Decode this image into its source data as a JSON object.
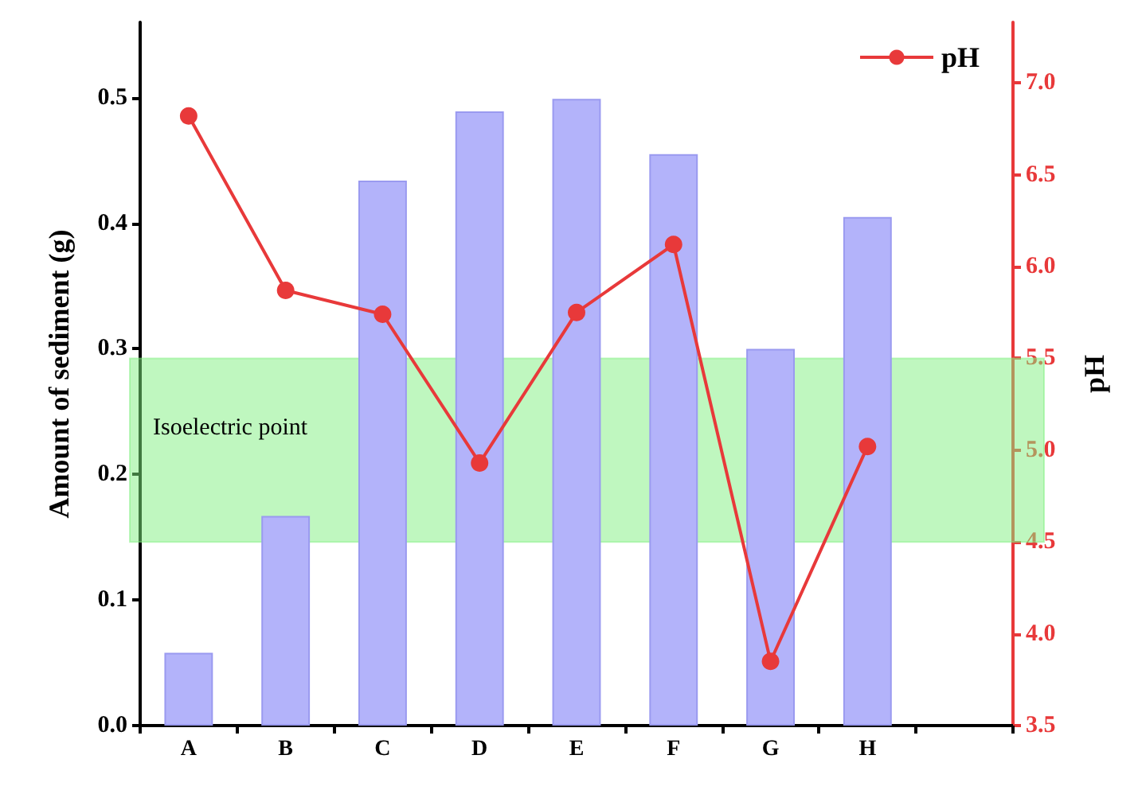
{
  "chart_data": {
    "type": "bar",
    "categories": [
      "A",
      "B",
      "C",
      "D",
      "E",
      "F",
      "G",
      "H"
    ],
    "series": [
      {
        "color": "#b3b3fa",
        "values": [
          0.058,
          0.167,
          0.434,
          0.489,
          0.499,
          0.455,
          0.3,
          0.405
        ]
      },
      {
        "name": "pH",
        "type": "line",
        "axis": "y2",
        "color": "#e8393a",
        "values": [
          6.82,
          5.87,
          5.74,
          4.93,
          5.75,
          6.12,
          3.85,
          5.02
        ]
      }
    ],
    "ylabel": "Amount of sediment (g)",
    "y2label": "pH",
    "ylim": [
      0,
      0.56
    ],
    "yticks": [
      {
        "value": 0,
        "label": "0.0"
      },
      0.1,
      0.2,
      0.3,
      0.4,
      0.5
    ],
    "y2lim": [
      3.5,
      7.33
    ],
    "y2ticks": [
      3.5,
      {
        "value": 4,
        "label": "4.0"
      },
      4.5,
      {
        "value": 5,
        "label": "5.0"
      },
      5.5,
      {
        "value": 6,
        "label": "6.0"
      },
      6.5,
      {
        "value": 7,
        "label": "7.0"
      }
    ],
    "bands": [
      {
        "axis": "y2",
        "from": 4.5,
        "to": 5.5,
        "label": "Isoelectric point",
        "color": "#80f080"
      }
    ],
    "legend": "top right",
    "grid": false,
    "marker": "circle"
  }
}
